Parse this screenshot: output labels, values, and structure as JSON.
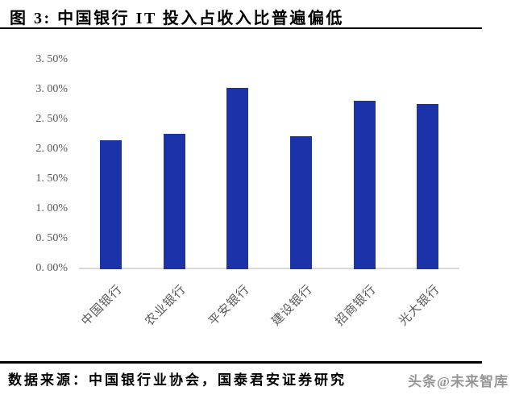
{
  "header": {
    "title": "图 3: 中国银行 IT 投入占收入比普遍偏低"
  },
  "footer": {
    "source": "数据来源：中国银行业协会，国泰君安证券研究",
    "watermark": "头条@未来智库"
  },
  "chart_data": {
    "type": "bar",
    "title": "图 3: 中国银行 IT 投入占收入比普遍偏低",
    "categories": [
      "中国银行",
      "农业银行",
      "平安银行",
      "建设银行",
      "招商银行",
      "光大银行"
    ],
    "values": [
      2.15,
      2.25,
      3.02,
      2.21,
      2.81,
      2.75
    ],
    "unit": "%",
    "xlabel": "",
    "ylabel": "",
    "ylim": [
      0,
      3.5
    ],
    "y_tick_step": 0.5,
    "y_tick_labels": [
      "3. 50%",
      "3. 00%",
      "2. 50%",
      "2. 00%",
      "1. 50%",
      "1. 00%",
      "0. 50%",
      "0. 00%"
    ],
    "grid": false,
    "legend": false,
    "bar_color": "#1c32a8",
    "axis_line_color": "#d9d9d9",
    "tick_label_color": "#595959"
  }
}
